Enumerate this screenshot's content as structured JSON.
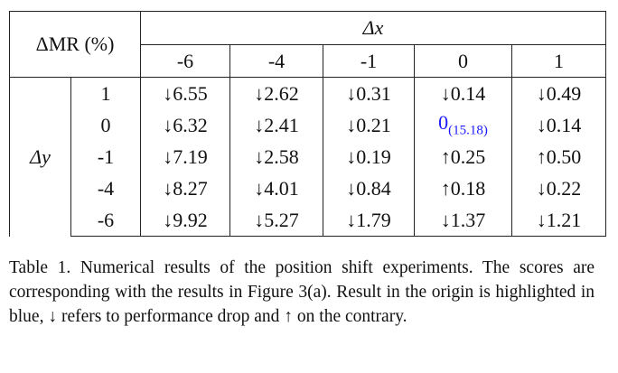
{
  "table": {
    "corner": "ΔMR (%)",
    "x_label": "Δx",
    "y_label": "Δy",
    "x_values": [
      "-6",
      "-4",
      "-1",
      "0",
      "1"
    ],
    "y_values": [
      "1",
      "0",
      "-1",
      "-4",
      "-6"
    ],
    "rows": [
      [
        "↓6.55",
        "↓2.62",
        "↓0.31",
        "↓0.14",
        "↓0.49"
      ],
      [
        "↓6.32",
        "↓2.41",
        "↓0.21",
        {
          "text": "0",
          "sub": "(15.18)",
          "color": "#1a1aff"
        },
        "↓0.14"
      ],
      [
        "↓7.19",
        "↓2.58",
        "↓0.19",
        "↑0.25",
        "↑0.50"
      ],
      [
        "↓8.27",
        "↓4.01",
        "↓0.84",
        "↑0.18",
        "↓0.22"
      ],
      [
        "↓9.92",
        "↓5.27",
        "↓1.79",
        "↓1.37",
        "↓1.21"
      ]
    ]
  },
  "caption": "Table 1. Numerical results of the position shift experiments. The scores are corresponding with the results in Figure 3(a). Result in the origin is highlighted in blue, ↓ refers to performance drop and ↑ on the contrary."
}
